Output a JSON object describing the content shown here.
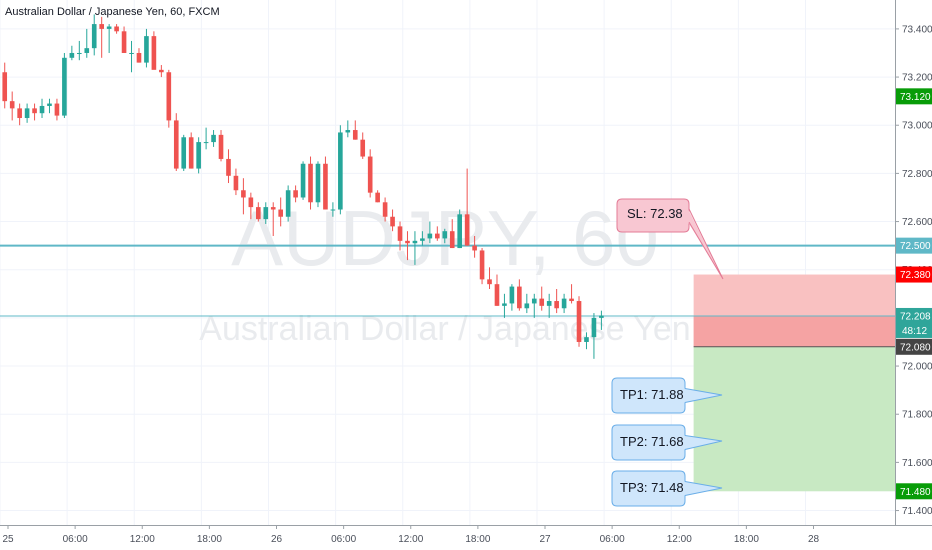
{
  "chart_title": "Australian Dollar / Japanese Yen, 60, FXCM",
  "watermark_symbol": "AUDJPY, 60",
  "watermark_name": "Australian Dollar / Japanese Yen",
  "colors": {
    "up": "#26a69a",
    "down": "#ef5350",
    "level_line": "#5fb8c7",
    "stop_zone": "#f9c1c1",
    "target_zone": "#c8e9c3",
    "sl_label_bg": "#ff0000",
    "tp_label_bg": "#089c08",
    "current_price_bg": "#2fa59a",
    "entry_label_bg": "#444444",
    "level_label_bg": "#5fb8c7"
  },
  "price_labels": {
    "level_upper": "73.120",
    "level_mid": "72.500",
    "stop": "72.380",
    "current": "72.208",
    "countdown": "48:12",
    "entry": "72.080",
    "target": "71.480"
  },
  "annotations": {
    "sl": "SL: 72.38",
    "tp1": "TP1: 71.88",
    "tp2": "TP2: 71.68",
    "tp3": "TP3: 71.48"
  },
  "chart_data": {
    "type": "candlestick",
    "title": "Australian Dollar / Japanese Yen, 60, FXCM",
    "y_ticks": [
      "73.400",
      "73.200",
      "73.000",
      "72.800",
      "72.600",
      "72.400",
      "72.200",
      "72.000",
      "71.800",
      "71.600",
      "71.400"
    ],
    "x_ticks": [
      "25",
      "06:00",
      "12:00",
      "18:00",
      "26",
      "06:00",
      "12:00",
      "18:00",
      "27",
      "06:00",
      "12:00",
      "18:00",
      "28"
    ],
    "ylim": [
      71.34,
      73.52
    ],
    "xlim": [
      0,
      120
    ],
    "x_tick_positions": [
      0,
      9,
      18,
      27,
      36,
      45,
      54,
      63,
      72,
      81,
      90,
      99,
      108
    ],
    "horizontal_levels": [
      73.12,
      72.5,
      72.208
    ],
    "trade": {
      "stop": 72.38,
      "entry": 72.08,
      "target": 71.48,
      "x_start": 93
    },
    "candles": [
      {
        "o": 73.22,
        "h": 73.26,
        "l": 73.07,
        "c": 73.1
      },
      {
        "o": 73.1,
        "h": 73.14,
        "l": 73.02,
        "c": 73.07
      },
      {
        "o": 73.07,
        "h": 73.09,
        "l": 73.0,
        "c": 73.03
      },
      {
        "o": 73.03,
        "h": 73.09,
        "l": 73.01,
        "c": 73.07
      },
      {
        "o": 73.07,
        "h": 73.09,
        "l": 73.02,
        "c": 73.05
      },
      {
        "o": 73.05,
        "h": 73.11,
        "l": 73.03,
        "c": 73.08
      },
      {
        "o": 73.08,
        "h": 73.11,
        "l": 73.05,
        "c": 73.09
      },
      {
        "o": 73.09,
        "h": 73.11,
        "l": 73.02,
        "c": 73.04
      },
      {
        "o": 73.04,
        "h": 73.3,
        "l": 73.03,
        "c": 73.28
      },
      {
        "o": 73.28,
        "h": 73.33,
        "l": 73.27,
        "c": 73.3
      },
      {
        "o": 73.3,
        "h": 73.35,
        "l": 73.27,
        "c": 73.3
      },
      {
        "o": 73.3,
        "h": 73.4,
        "l": 73.28,
        "c": 73.32
      },
      {
        "o": 73.32,
        "h": 73.46,
        "l": 73.29,
        "c": 73.42
      },
      {
        "o": 73.42,
        "h": 73.45,
        "l": 73.28,
        "c": 73.4
      },
      {
        "o": 73.4,
        "h": 73.42,
        "l": 73.3,
        "c": 73.41
      },
      {
        "o": 73.41,
        "h": 73.42,
        "l": 73.38,
        "c": 73.39
      },
      {
        "o": 73.39,
        "h": 73.41,
        "l": 73.3,
        "c": 73.3
      },
      {
        "o": 73.3,
        "h": 73.35,
        "l": 73.22,
        "c": 73.3
      },
      {
        "o": 73.3,
        "h": 73.32,
        "l": 73.26,
        "c": 73.26
      },
      {
        "o": 73.26,
        "h": 73.4,
        "l": 73.24,
        "c": 73.37
      },
      {
        "o": 73.37,
        "h": 73.39,
        "l": 73.24,
        "c": 73.23
      },
      {
        "o": 73.23,
        "h": 73.25,
        "l": 73.2,
        "c": 73.22
      },
      {
        "o": 73.22,
        "h": 73.23,
        "l": 72.99,
        "c": 73.02
      },
      {
        "o": 73.02,
        "h": 73.05,
        "l": 72.81,
        "c": 72.82
      },
      {
        "o": 72.82,
        "h": 72.96,
        "l": 72.81,
        "c": 72.95
      },
      {
        "o": 72.95,
        "h": 72.97,
        "l": 72.82,
        "c": 72.82
      },
      {
        "o": 72.82,
        "h": 72.95,
        "l": 72.8,
        "c": 72.93
      },
      {
        "o": 72.93,
        "h": 72.99,
        "l": 72.9,
        "c": 72.93
      },
      {
        "o": 72.93,
        "h": 72.98,
        "l": 72.91,
        "c": 72.96
      },
      {
        "o": 72.96,
        "h": 72.98,
        "l": 72.85,
        "c": 72.86
      },
      {
        "o": 72.86,
        "h": 72.9,
        "l": 72.76,
        "c": 72.79
      },
      {
        "o": 72.79,
        "h": 72.82,
        "l": 72.71,
        "c": 72.73
      },
      {
        "o": 72.73,
        "h": 72.78,
        "l": 72.63,
        "c": 72.7
      },
      {
        "o": 72.7,
        "h": 72.72,
        "l": 72.61,
        "c": 72.66
      },
      {
        "o": 72.66,
        "h": 72.68,
        "l": 72.6,
        "c": 72.61
      },
      {
        "o": 72.61,
        "h": 72.68,
        "l": 72.59,
        "c": 72.66
      },
      {
        "o": 72.66,
        "h": 72.68,
        "l": 72.54,
        "c": 72.65
      },
      {
        "o": 72.65,
        "h": 72.7,
        "l": 72.58,
        "c": 72.62
      },
      {
        "o": 72.62,
        "h": 72.75,
        "l": 72.6,
        "c": 72.73
      },
      {
        "o": 72.73,
        "h": 72.75,
        "l": 72.68,
        "c": 72.7
      },
      {
        "o": 72.7,
        "h": 72.85,
        "l": 72.69,
        "c": 72.84
      },
      {
        "o": 72.84,
        "h": 72.87,
        "l": 72.65,
        "c": 72.68
      },
      {
        "o": 72.68,
        "h": 72.85,
        "l": 72.66,
        "c": 72.84
      },
      {
        "o": 72.84,
        "h": 72.87,
        "l": 72.65,
        "c": 72.65
      },
      {
        "o": 72.65,
        "h": 72.68,
        "l": 72.62,
        "c": 72.65
      },
      {
        "o": 72.65,
        "h": 73.0,
        "l": 72.63,
        "c": 72.97
      },
      {
        "o": 72.97,
        "h": 73.02,
        "l": 72.95,
        "c": 72.98
      },
      {
        "o": 72.98,
        "h": 73.02,
        "l": 72.94,
        "c": 72.94
      },
      {
        "o": 72.94,
        "h": 72.97,
        "l": 72.86,
        "c": 72.87
      },
      {
        "o": 72.87,
        "h": 72.9,
        "l": 72.7,
        "c": 72.72
      },
      {
        "o": 72.72,
        "h": 72.73,
        "l": 72.68,
        "c": 72.68
      },
      {
        "o": 72.68,
        "h": 72.7,
        "l": 72.6,
        "c": 72.62
      },
      {
        "o": 72.62,
        "h": 72.65,
        "l": 72.56,
        "c": 72.58
      },
      {
        "o": 72.58,
        "h": 72.6,
        "l": 72.48,
        "c": 72.52
      },
      {
        "o": 72.52,
        "h": 72.56,
        "l": 72.44,
        "c": 72.51
      },
      {
        "o": 72.51,
        "h": 72.56,
        "l": 72.42,
        "c": 72.52
      },
      {
        "o": 72.52,
        "h": 72.56,
        "l": 72.5,
        "c": 72.53
      },
      {
        "o": 72.53,
        "h": 72.6,
        "l": 72.51,
        "c": 72.55
      },
      {
        "o": 72.55,
        "h": 72.58,
        "l": 72.52,
        "c": 72.53
      },
      {
        "o": 72.53,
        "h": 72.57,
        "l": 72.51,
        "c": 72.56
      },
      {
        "o": 72.56,
        "h": 72.61,
        "l": 72.49,
        "c": 72.49
      },
      {
        "o": 72.49,
        "h": 72.65,
        "l": 72.49,
        "c": 72.63
      },
      {
        "o": 72.63,
        "h": 72.82,
        "l": 72.5,
        "c": 72.5
      },
      {
        "o": 72.5,
        "h": 72.54,
        "l": 72.45,
        "c": 72.48
      },
      {
        "o": 72.48,
        "h": 72.49,
        "l": 72.34,
        "c": 72.36
      },
      {
        "o": 72.36,
        "h": 72.41,
        "l": 72.32,
        "c": 72.34
      },
      {
        "o": 72.34,
        "h": 72.38,
        "l": 72.25,
        "c": 72.25
      },
      {
        "o": 72.25,
        "h": 72.3,
        "l": 72.2,
        "c": 72.26
      },
      {
        "o": 72.26,
        "h": 72.34,
        "l": 72.23,
        "c": 72.33
      },
      {
        "o": 72.33,
        "h": 72.36,
        "l": 72.23,
        "c": 72.24
      },
      {
        "o": 72.24,
        "h": 72.3,
        "l": 72.22,
        "c": 72.26
      },
      {
        "o": 72.26,
        "h": 72.3,
        "l": 72.2,
        "c": 72.28
      },
      {
        "o": 72.28,
        "h": 72.33,
        "l": 72.23,
        "c": 72.25
      },
      {
        "o": 72.25,
        "h": 72.3,
        "l": 72.2,
        "c": 72.27
      },
      {
        "o": 72.27,
        "h": 72.32,
        "l": 72.22,
        "c": 72.24
      },
      {
        "o": 72.24,
        "h": 72.3,
        "l": 72.22,
        "c": 72.28
      },
      {
        "o": 72.28,
        "h": 72.34,
        "l": 72.26,
        "c": 72.27
      },
      {
        "o": 72.27,
        "h": 72.29,
        "l": 72.08,
        "c": 72.1
      },
      {
        "o": 72.1,
        "h": 72.14,
        "l": 72.07,
        "c": 72.12
      },
      {
        "o": 72.12,
        "h": 72.22,
        "l": 72.03,
        "c": 72.2
      },
      {
        "o": 72.2,
        "h": 72.23,
        "l": 72.15,
        "c": 72.21
      }
    ]
  }
}
